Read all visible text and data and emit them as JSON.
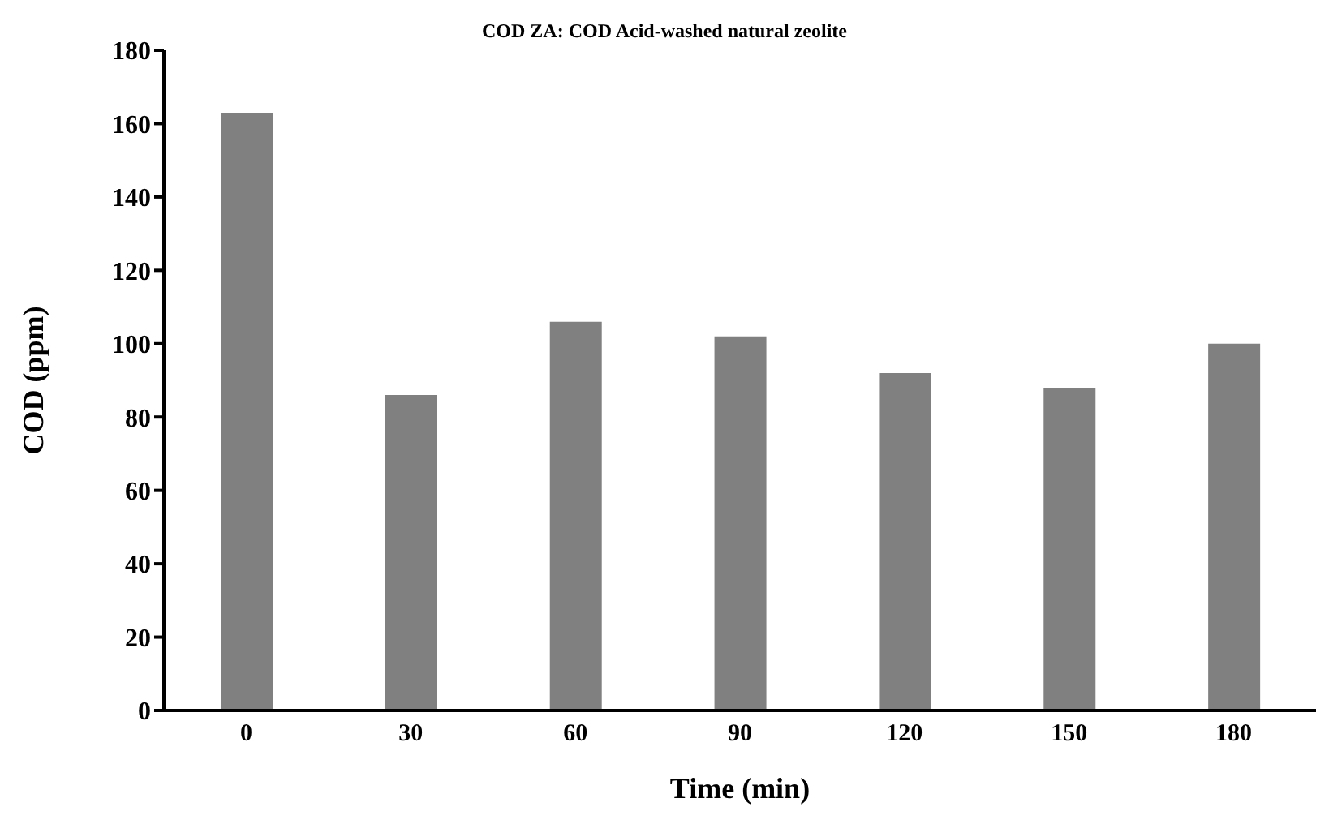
{
  "chart_data": {
    "type": "bar",
    "title": "COD ZA: COD Acid-washed natural zeolite",
    "xlabel": "Time (min)",
    "ylabel": "COD (ppm)",
    "categories": [
      "0",
      "30",
      "60",
      "90",
      "120",
      "150",
      "180"
    ],
    "values": [
      163,
      86,
      106,
      102,
      92,
      88,
      100
    ],
    "color": "#808080",
    "ylim": [
      0,
      180
    ],
    "yticks": [
      0,
      20,
      40,
      60,
      80,
      100,
      120,
      140,
      160,
      180
    ],
    "grid": false,
    "legend": false
  }
}
